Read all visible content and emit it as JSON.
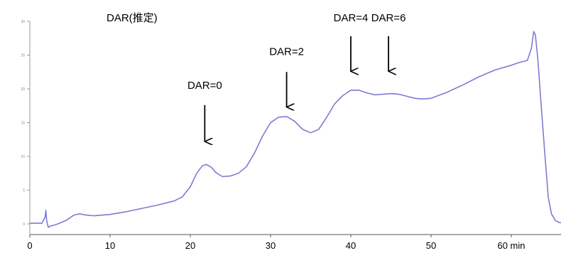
{
  "chart_data": {
    "type": "line",
    "title": "DAR(推定)",
    "xlabel": "",
    "ylabel": "",
    "xlim": [
      0,
      68
    ],
    "ylim": [
      0,
      30
    ],
    "grid": false,
    "x_ticks": [
      {
        "value": 0,
        "label": "0"
      },
      {
        "value": 10,
        "label": "10"
      },
      {
        "value": 20,
        "label": "20"
      },
      {
        "value": 30,
        "label": "30"
      },
      {
        "value": 40,
        "label": "40"
      },
      {
        "value": 50,
        "label": "50"
      },
      {
        "value": 60,
        "label": "60 min"
      }
    ],
    "y_ticks": [
      {
        "value": 0,
        "label": "0"
      },
      {
        "value": 5,
        "label": "5"
      },
      {
        "value": 10,
        "label": "10"
      },
      {
        "value": 15,
        "label": "15"
      },
      {
        "value": 20,
        "label": "20"
      },
      {
        "value": 25,
        "label": "25"
      },
      {
        "value": 30,
        "label": "30"
      }
    ],
    "series": [
      {
        "color": "#7b7bd6",
        "x": [
          0,
          1.5,
          1.9,
          2.0,
          2.1,
          2.3,
          2.6,
          3.0,
          3.5,
          4.5,
          5.5,
          6.2,
          7.0,
          8.0,
          10,
          12,
          14,
          16,
          18,
          19,
          20,
          20.8,
          21.5,
          22.0,
          22.6,
          23.2,
          24,
          25,
          26,
          27,
          28,
          29,
          30,
          31,
          32,
          33,
          34,
          35,
          36,
          37,
          38,
          39,
          40,
          41,
          42,
          43,
          44,
          45,
          46,
          47,
          48,
          49,
          50,
          52,
          54,
          56,
          58,
          60,
          61,
          62,
          62.5,
          62.8,
          63.0,
          63.3,
          63.7,
          64.2,
          64.6,
          65.0,
          65.5,
          66,
          67,
          68
        ],
        "y": [
          0.1,
          0.1,
          1.0,
          2.0,
          0.5,
          -0.5,
          -0.3,
          -0.2,
          0.0,
          0.5,
          1.3,
          1.5,
          1.3,
          1.2,
          1.4,
          1.8,
          2.3,
          2.8,
          3.4,
          4.0,
          5.5,
          7.5,
          8.6,
          8.8,
          8.4,
          7.6,
          7.0,
          7.1,
          7.5,
          8.5,
          10.5,
          13.0,
          15.0,
          15.8,
          15.9,
          15.2,
          14.0,
          13.5,
          14.0,
          15.8,
          17.8,
          19.0,
          19.8,
          19.8,
          19.4,
          19.1,
          19.2,
          19.3,
          19.2,
          18.9,
          18.6,
          18.5,
          18.6,
          19.5,
          20.6,
          21.8,
          22.8,
          23.5,
          23.9,
          24.2,
          26.0,
          28.5,
          28.0,
          24.5,
          18.0,
          10.0,
          4.0,
          1.5,
          0.5,
          0.2,
          0.0,
          0.0
        ]
      }
    ],
    "annotations": [
      {
        "label": "DAR=0",
        "x": 21.8,
        "text_y": 20.0,
        "arrow_from": 17.6,
        "arrow_to": 12.2
      },
      {
        "label": "DAR=2",
        "x": 32.0,
        "text_y": 25.0,
        "arrow_from": 22.5,
        "arrow_to": 17.3
      },
      {
        "label": "DAR=4",
        "x": 40.0,
        "text_y": 30.0,
        "arrow_from": 27.8,
        "arrow_to": 22.6
      },
      {
        "label": "DAR=6",
        "x": 44.7,
        "text_y": 30.0,
        "arrow_from": 27.8,
        "arrow_to": 22.6
      }
    ]
  }
}
